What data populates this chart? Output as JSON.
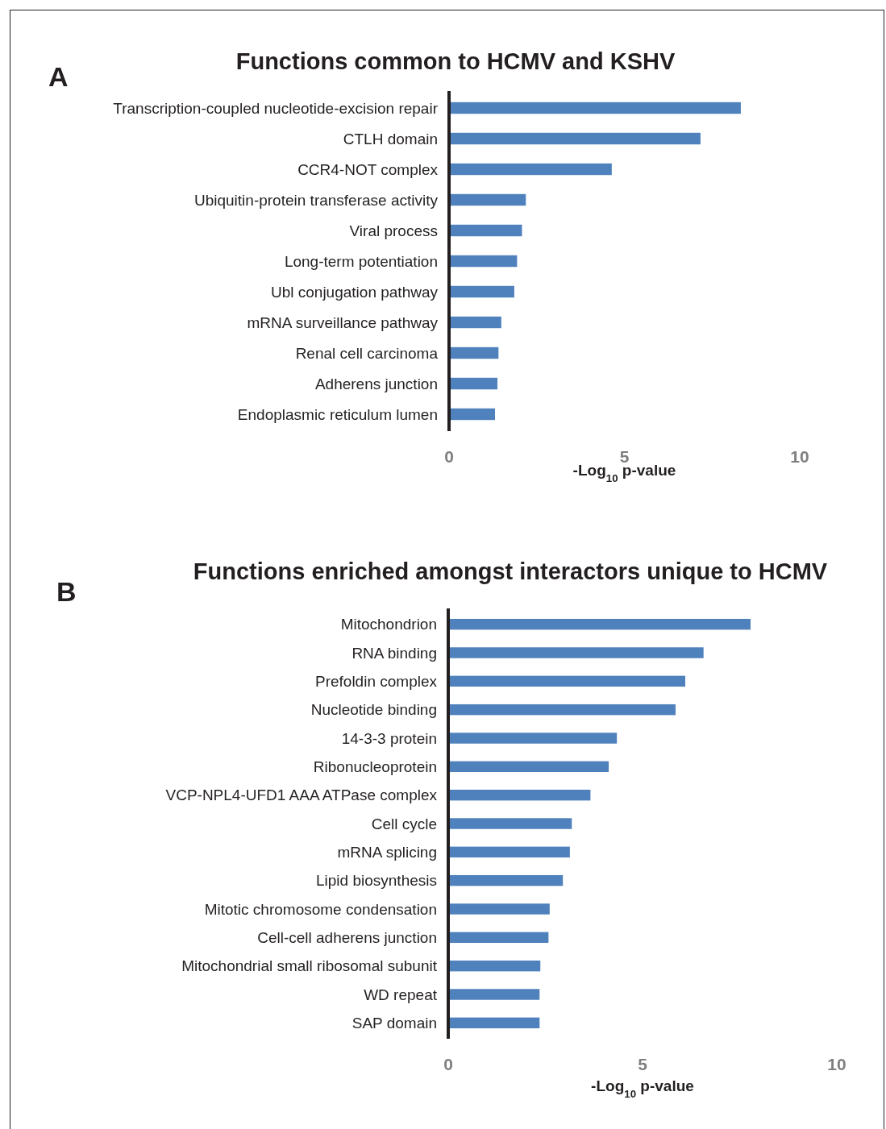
{
  "chart_data": [
    {
      "type": "bar",
      "orientation": "horizontal",
      "title": "Functions common to HCMV and KSHV",
      "annotations": [
        "A"
      ],
      "xlabel": "-Log$_{10}$ p-value",
      "categories": [
        "Transcription-coupled nucleotide-excision repair",
        "CTLH domain",
        "CCR4-NOT complex",
        "Ubiquitin-protein transferase activity",
        "Viral process",
        "Long-term potentiation",
        "Ubl conjugation pathway",
        "mRNA surveillance pathway",
        "Renal cell carcinoma",
        "Adherens junction",
        "Endoplasmic reticulum lumen"
      ],
      "values": [
        8.32,
        7.17,
        4.64,
        2.19,
        2.08,
        1.94,
        1.86,
        1.49,
        1.41,
        1.38,
        1.31
      ],
      "color": "#4f81bd",
      "xlim": [
        0,
        10
      ],
      "xticks": [
        0,
        5,
        10
      ],
      "grid": false
    },
    {
      "type": "bar",
      "orientation": "horizontal",
      "title": "Functions enriched amongst interactors unique to HCMV",
      "annotations": [
        "B"
      ],
      "xlabel": "-Log$_{10}$ p-value",
      "categories": [
        "Mitochondrion",
        "RNA binding",
        "Prefoldin complex",
        "Nucleotide binding",
        "14-3-3 protein",
        "Ribonucleoprotein",
        "VCP-NPL4-UFD1 AAA ATPase complex",
        "Cell cycle",
        "mRNA splicing",
        "Lipid biosynthesis",
        "Mitotic chromosome condensation",
        "Cell-cell adherens junction",
        "Mitochondrial small ribosomal subunit",
        "WD repeat",
        "SAP domain"
      ],
      "values": [
        7.78,
        6.57,
        6.1,
        5.85,
        4.34,
        4.13,
        3.66,
        3.18,
        3.13,
        2.95,
        2.61,
        2.58,
        2.37,
        2.35,
        2.35
      ],
      "color": "#4f81bd",
      "xlim": [
        0,
        10
      ],
      "xticks": [
        0,
        5,
        10
      ],
      "grid": false
    }
  ]
}
